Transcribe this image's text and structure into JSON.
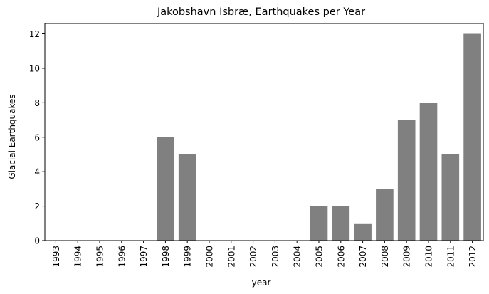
{
  "chart_data": {
    "type": "bar",
    "title": "Jakobshavn Isbræ, Earthquakes per Year",
    "xlabel": "year",
    "ylabel": "Glacial Earthquakes",
    "categories": [
      "1993",
      "1994",
      "1995",
      "1996",
      "1997",
      "1998",
      "1999",
      "2000",
      "2001",
      "2002",
      "2003",
      "2004",
      "2005",
      "2006",
      "2007",
      "2008",
      "2009",
      "2010",
      "2011",
      "2012"
    ],
    "values": [
      0,
      0,
      0,
      0,
      0,
      6,
      5,
      0,
      0,
      0,
      0,
      0,
      2,
      2,
      1,
      3,
      7,
      8,
      5,
      12
    ],
    "ylim": [
      0,
      12.6
    ],
    "yticks": [
      0,
      2,
      4,
      6,
      8,
      10,
      12
    ],
    "bar_color": "#808080",
    "grid": false,
    "x_tick_rotation": "vertical"
  }
}
